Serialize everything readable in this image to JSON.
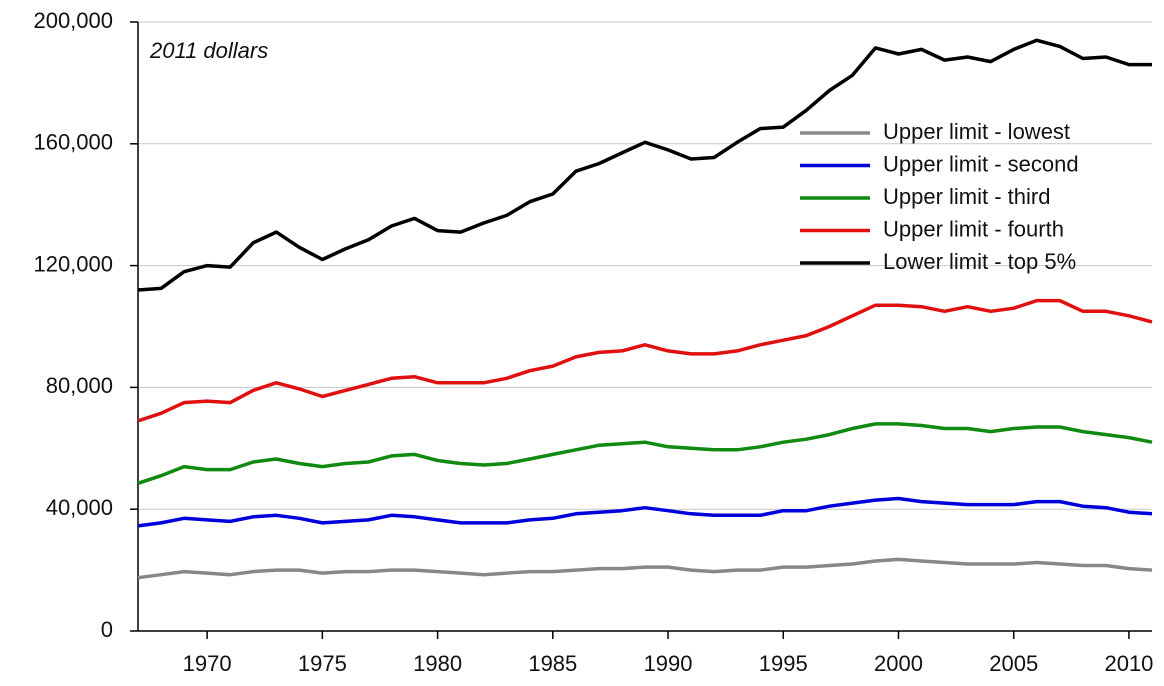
{
  "chart_data": {
    "type": "line",
    "annotation": "2011 dollars",
    "x": [
      1967,
      1968,
      1969,
      1970,
      1971,
      1972,
      1973,
      1974,
      1975,
      1976,
      1977,
      1978,
      1979,
      1980,
      1981,
      1982,
      1983,
      1984,
      1985,
      1986,
      1987,
      1988,
      1989,
      1990,
      1991,
      1992,
      1993,
      1994,
      1995,
      1996,
      1997,
      1998,
      1999,
      2000,
      2001,
      2002,
      2003,
      2004,
      2005,
      2006,
      2007,
      2008,
      2009,
      2010,
      2011
    ],
    "series": [
      {
        "name": "Upper limit - lowest",
        "color": "#888888",
        "values": [
          17500,
          18500,
          19500,
          19000,
          18500,
          19500,
          20000,
          20000,
          19000,
          19500,
          19500,
          20000,
          20000,
          19500,
          19000,
          18500,
          19000,
          19500,
          19500,
          20000,
          20500,
          20500,
          21000,
          21000,
          20000,
          19500,
          20000,
          20000,
          21000,
          21000,
          21500,
          22000,
          23000,
          23500,
          23000,
          22500,
          22000,
          22000,
          22000,
          22500,
          22000,
          21500,
          21500,
          20500,
          20000
        ]
      },
      {
        "name": "Upper limit - second",
        "color": "#0000dd",
        "values": [
          34500,
          35500,
          37000,
          36500,
          36000,
          37500,
          38000,
          37000,
          35500,
          36000,
          36500,
          38000,
          37500,
          36500,
          35500,
          35500,
          35500,
          36500,
          37000,
          38500,
          39000,
          39500,
          40500,
          39500,
          38500,
          38000,
          38000,
          38000,
          39500,
          39500,
          41000,
          42000,
          43000,
          43500,
          42500,
          42000,
          41500,
          41500,
          41500,
          42500,
          42500,
          41000,
          40500,
          39000,
          38500
        ]
      },
      {
        "name": "Upper limit - third",
        "color": "#108a10",
        "values": [
          48500,
          51000,
          54000,
          53000,
          53000,
          55500,
          56500,
          55000,
          54000,
          55000,
          55500,
          57500,
          58000,
          56000,
          55000,
          54500,
          55000,
          56500,
          58000,
          59500,
          61000,
          61500,
          62000,
          60500,
          60000,
          59500,
          59500,
          60500,
          62000,
          63000,
          64500,
          66500,
          68000,
          68000,
          67500,
          66500,
          66500,
          65500,
          66500,
          67000,
          67000,
          65500,
          64500,
          63500,
          62000
        ]
      },
      {
        "name": "Upper limit - fourth",
        "color": "#e01010",
        "values": [
          69000,
          71500,
          75000,
          75500,
          75000,
          79000,
          81500,
          79500,
          77000,
          79000,
          81000,
          83000,
          83500,
          81500,
          81500,
          81500,
          83000,
          85500,
          87000,
          90000,
          91500,
          92000,
          94000,
          92000,
          91000,
          91000,
          92000,
          94000,
          95500,
          97000,
          100000,
          103500,
          107000,
          107000,
          106500,
          105000,
          106500,
          105000,
          106000,
          108500,
          108500,
          105000,
          105000,
          103500,
          101500
        ]
      },
      {
        "name": "Lower limit - top 5%",
        "color": "#000000",
        "values": [
          112000,
          112500,
          118000,
          120000,
          119500,
          127500,
          131000,
          126000,
          122000,
          125500,
          128500,
          133000,
          135500,
          131500,
          131000,
          134000,
          136500,
          141000,
          143500,
          151000,
          153500,
          157000,
          160500,
          158000,
          155000,
          155500,
          160500,
          165000,
          165500,
          171000,
          177500,
          182500,
          191500,
          189500,
          191000,
          187500,
          188500,
          187000,
          191000,
          194000,
          192000,
          188000,
          188500,
          186000,
          186000
        ]
      }
    ],
    "xlim": [
      1967,
      2011
    ],
    "xticks": [
      1970,
      1975,
      1980,
      1985,
      1990,
      1995,
      2000,
      2005,
      2010
    ],
    "ylim": [
      0,
      200000
    ],
    "yticks": [
      0,
      {
        "value": 40000,
        "label": "40,000"
      },
      {
        "value": 80000,
        "label": "80,000"
      },
      {
        "value": 120000,
        "label": "120,000"
      },
      {
        "value": 160000,
        "label": "160,000"
      },
      {
        "value": 200000,
        "label": "200,000"
      }
    ],
    "grid": true,
    "legend": "right"
  }
}
